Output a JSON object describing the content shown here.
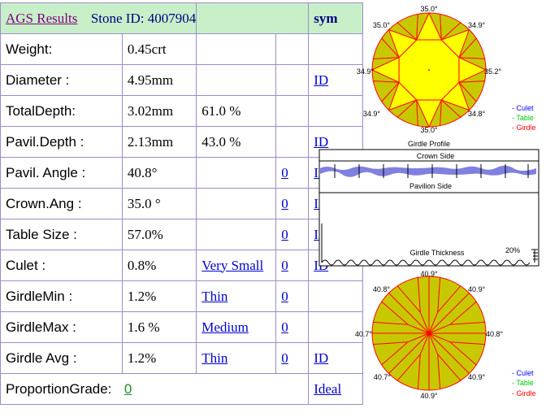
{
  "header": {
    "title": "AGS  Results",
    "stone_label": "Stone ID:  4007904",
    "sym_label": "sym"
  },
  "rows": [
    {
      "label": "Weight:",
      "value": "0.45crt",
      "col3": "",
      "col4": "",
      "col5": ""
    },
    {
      "label": "Diameter :",
      "value": "4.95mm",
      "col3": "",
      "col4": "",
      "col5": "ID"
    },
    {
      "label": "TotalDepth:",
      "value": "3.02mm",
      "col3": "61.0 %",
      "col4": "",
      "col5": ""
    },
    {
      "label": "Pavil.Depth :",
      "value": "2.13mm",
      "col3": "43.0 %",
      "col4": "",
      "col5": "ID"
    },
    {
      "label": "Pavil. Angle :",
      "value": "40.8°",
      "col3": "",
      "col4": "0",
      "col5": "ID "
    },
    {
      "label": "Crown.Ang :",
      "value": "35.0 °",
      "col3": "",
      "col4": "0",
      "col5": "ID"
    },
    {
      "label": "Table Size :",
      "value": "57.0%",
      "col3": "",
      "col4": "0",
      "col5": "ID"
    },
    {
      "label": "Culet :",
      "value": "0.8%",
      "col3": "Very Small",
      "col4": "0",
      "col5": "ID"
    },
    {
      "label": "GirdleMin :",
      "value": "1.2%",
      "col3": "Thin",
      "col4": "0",
      "col5": ""
    },
    {
      "label": "GirdleMax :",
      "value": "1.6 %",
      "col3": "Medium ",
      "col4": "0",
      "col5": ""
    },
    {
      "label": "Girdle Avg :",
      "value": "1.2%",
      "col3": "Thin ",
      "col4": "0 ",
      "col5": "ID "
    }
  ],
  "footer": {
    "label": "ProportionGrade:",
    "value": "0",
    "grade": "Ideal "
  },
  "crown_view": {
    "angles": {
      "top": "35.0°",
      "top_right": "34.9°",
      "right": "35.2°",
      "bottom_right": "34.8°",
      "bottom": "35.0°",
      "bottom_left": "34.9°",
      "left": "34.9°",
      "top_left": "35.0°"
    },
    "caption": "Girdle Profile"
  },
  "pavilion_view": {
    "angles": {
      "top": "40.9°",
      "top_right": "40.9°",
      "right": "40.8°",
      "bottom_right": "40.9°",
      "bottom": "40.9°",
      "bottom_left": "40.7°",
      "left": "40.7°",
      "top_left": "40.8°"
    }
  },
  "legend": {
    "culet": "- Culet",
    "table": "- Table",
    "girdle": "- Girdle"
  },
  "profile": {
    "crown_side": "Crown Side",
    "pavilion_side": "Pavilion Side",
    "girdle_thickness": "Girdle Thickness",
    "percent": "20%"
  },
  "colors": {
    "facet_fill": "#c8c800",
    "table_fill": "#ffff00",
    "facet_line": "#ff0000",
    "table_legend": "#00c800",
    "culet_legend": "#0000ff",
    "girdle_band": "#8080e0"
  }
}
